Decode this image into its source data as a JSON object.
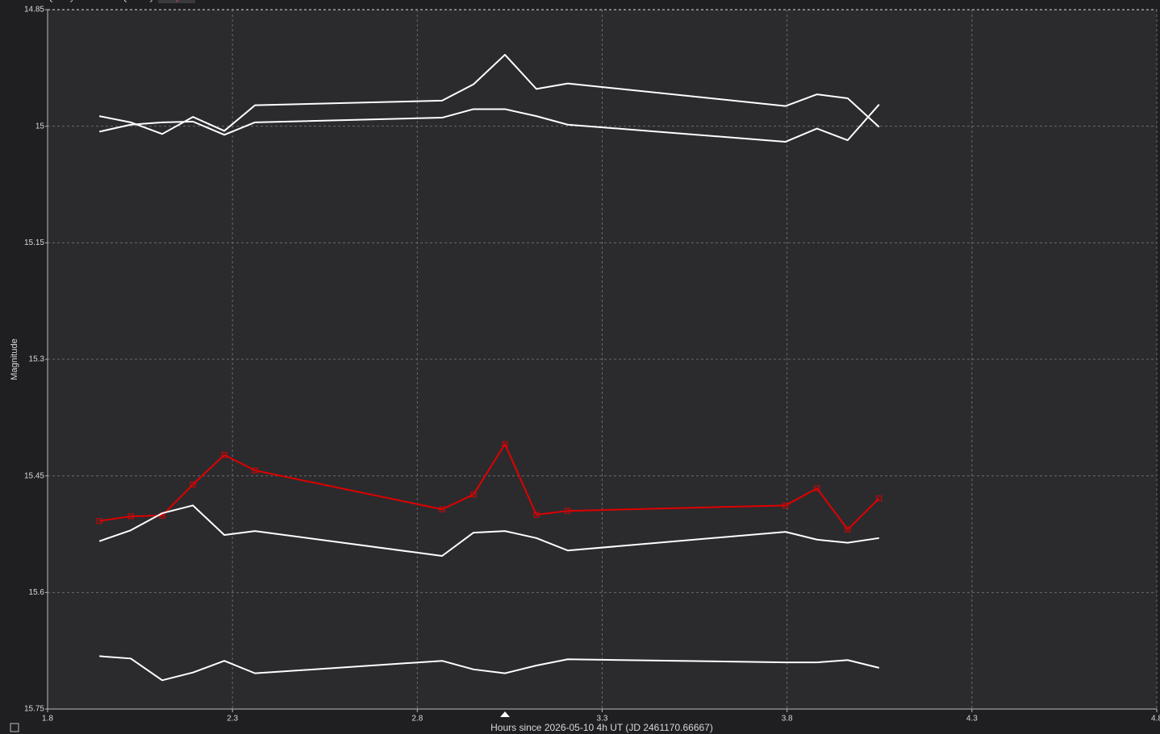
{
  "tabs": [
    "Select",
    "Quality",
    "Filter",
    "Quantity",
    "Graph"
  ],
  "chart_data": {
    "type": "line",
    "y_label": "Magnitude",
    "x_label": "Hours since 2026-05-10 4h UT (JD 2461170.66667)",
    "x": [
      1.94,
      2.025,
      2.11,
      2.193,
      2.278,
      2.361,
      2.867,
      2.952,
      3.037,
      3.122,
      3.207,
      3.796,
      3.881,
      3.964,
      4.049
    ],
    "series": [
      {
        "color": "#ffffff",
        "values": [
          14.987,
          14.995,
          15.01,
          14.988,
          15.006,
          14.973,
          14.967,
          14.946,
          14.908,
          14.952,
          14.945,
          14.974,
          14.959,
          14.964,
          15.001
        ]
      },
      {
        "color": "#ffffff",
        "values": [
          15.007,
          14.998,
          14.995,
          14.994,
          15.011,
          14.995,
          14.989,
          14.978,
          14.978,
          14.987,
          14.998,
          15.02,
          15.003,
          15.018,
          14.972
        ]
      },
      {
        "color": "#e00000",
        "markers": true,
        "values": [
          15.508,
          15.502,
          15.501,
          15.461,
          15.423,
          15.443,
          15.493,
          15.474,
          15.409,
          15.5,
          15.495,
          15.488,
          15.466,
          15.519,
          15.479
        ]
      },
      {
        "color": "#ffffff",
        "values": [
          15.534,
          15.52,
          15.498,
          15.488,
          15.526,
          15.521,
          15.553,
          15.523,
          15.521,
          15.53,
          15.546,
          15.522,
          15.532,
          15.536,
          15.53
        ]
      },
      {
        "color": "#ffffff",
        "values": [
          15.682,
          15.685,
          15.713,
          15.703,
          15.688,
          15.704,
          15.688,
          15.699,
          15.704,
          15.694,
          15.686,
          15.69,
          15.69,
          15.687,
          15.697
        ]
      }
    ],
    "xlim": [
      1.8,
      4.8
    ],
    "xticks": [
      1.8,
      2.3,
      2.8,
      3.3,
      3.8,
      4.3,
      4.8
    ],
    "ylim": [
      14.85,
      15.75
    ],
    "yticks": [
      14.85,
      15,
      15.15,
      15.3,
      15.45,
      15.6,
      15.75
    ],
    "y_inverted": true,
    "grid": true
  }
}
